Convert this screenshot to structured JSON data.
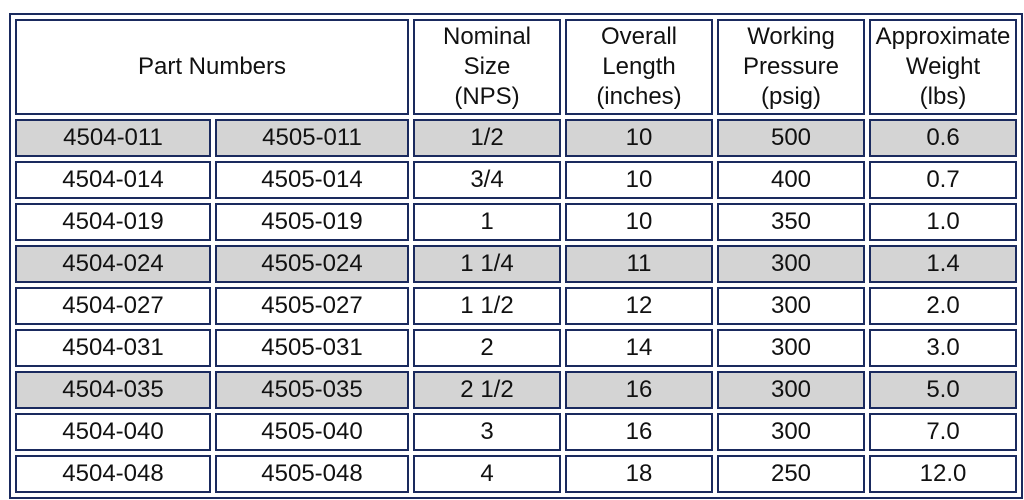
{
  "header": {
    "part_numbers": "Part Numbers",
    "nominal_size": [
      "Nominal",
      "Size",
      "(NPS)"
    ],
    "overall_length": [
      "Overall",
      "Length",
      "(inches)"
    ],
    "working_pressure": [
      "Working",
      "Pressure",
      "(psig)"
    ],
    "approximate_weight": [
      "Approximate",
      "Weight",
      "(lbs)"
    ]
  },
  "rows": [
    {
      "part_a": "4504-011",
      "part_b": "4505-011",
      "nps": "1/2",
      "length": "10",
      "pressure": "500",
      "weight": "0.6"
    },
    {
      "part_a": "4504-014",
      "part_b": "4505-014",
      "nps": "3/4",
      "length": "10",
      "pressure": "400",
      "weight": "0.7"
    },
    {
      "part_a": "4504-019",
      "part_b": "4505-019",
      "nps": "1",
      "length": "10",
      "pressure": "350",
      "weight": "1.0"
    },
    {
      "part_a": "4504-024",
      "part_b": "4505-024",
      "nps": "1 1/4",
      "length": "11",
      "pressure": "300",
      "weight": "1.4"
    },
    {
      "part_a": "4504-027",
      "part_b": "4505-027",
      "nps": "1 1/2",
      "length": "12",
      "pressure": "300",
      "weight": "2.0"
    },
    {
      "part_a": "4504-031",
      "part_b": "4505-031",
      "nps": "2",
      "length": "14",
      "pressure": "300",
      "weight": "3.0"
    },
    {
      "part_a": "4504-035",
      "part_b": "4505-035",
      "nps": "2 1/2",
      "length": "16",
      "pressure": "300",
      "weight": "5.0"
    },
    {
      "part_a": "4504-040",
      "part_b": "4505-040",
      "nps": "3",
      "length": "16",
      "pressure": "300",
      "weight": "7.0"
    },
    {
      "part_a": "4504-048",
      "part_b": "4505-048",
      "nps": "4",
      "length": "18",
      "pressure": "250",
      "weight": "12.0"
    }
  ],
  "shaded_rows": [
    0,
    3,
    6
  ],
  "colors": {
    "border": "#1a2a5e",
    "shade": "#d4d4d4",
    "background": "#ffffff",
    "text": "#111111"
  }
}
